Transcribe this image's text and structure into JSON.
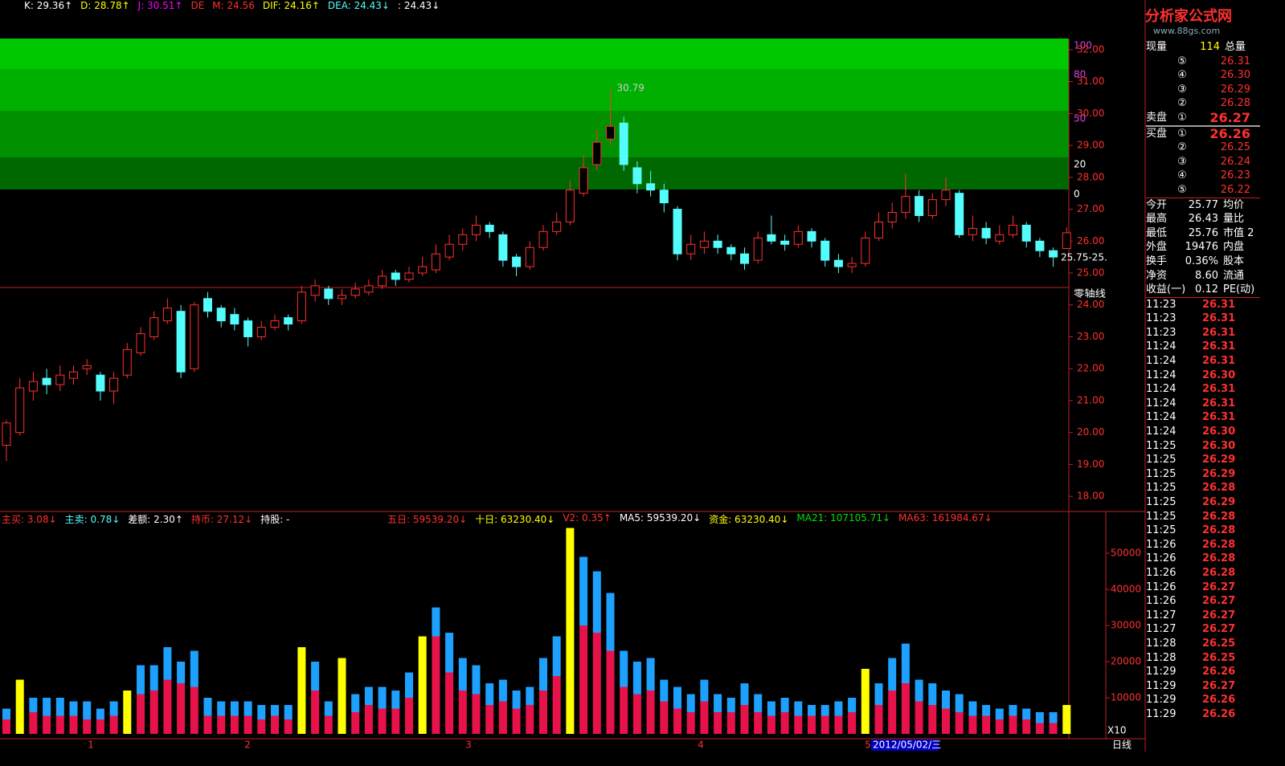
{
  "header": {
    "indicators": [
      {
        "text": "K: 29.36↑",
        "color": "#ffffff"
      },
      {
        "text": "D: 28.78↑",
        "color": "#ffff00"
      },
      {
        "text": "J: 30.51↑",
        "color": "#ff00ff"
      },
      {
        "text": "DE",
        "color": "#ff3030"
      },
      {
        "text": "M: 24.56",
        "color": "#ff3030"
      },
      {
        "text": "DIF: 24.16↑",
        "color": "#ffff00"
      },
      {
        "text": "DEA: 24.43↓",
        "color": "#54fcfc"
      },
      {
        "text": ": 24.43↓",
        "color": "#ffffff"
      }
    ]
  },
  "logo": {
    "title": "分析家公式网",
    "url": "www.88gs.com"
  },
  "kdj_panel": {
    "levels": [
      100,
      80,
      50,
      20,
      0
    ]
  },
  "price_chart": {
    "ylim": [
      17.55,
      32.35
    ],
    "yticks": [
      {
        "value": 32,
        "label": "32.00"
      },
      {
        "value": 31,
        "label": "31.00"
      },
      {
        "value": 30,
        "label": "30.00"
      },
      {
        "value": 29,
        "label": "29.00"
      },
      {
        "value": 28,
        "label": "28.00"
      },
      {
        "value": 27,
        "label": "27.00"
      },
      {
        "value": 26,
        "label": "26.00"
      },
      {
        "value": 25,
        "label": "25.00"
      },
      {
        "value": 24,
        "label": "24.00"
      },
      {
        "value": 23,
        "label": "23.00"
      },
      {
        "value": 22,
        "label": "22.00"
      },
      {
        "value": 21,
        "label": "21.00"
      },
      {
        "value": 20,
        "label": "20.00"
      },
      {
        "value": 19,
        "label": "19.00"
      },
      {
        "value": 18,
        "label": "18.00"
      }
    ],
    "high_label": "30.79",
    "range_label": "25.75-25.",
    "zero_label": "零轴线",
    "candles": [
      [
        19.6,
        20.4,
        19.1,
        20.3
      ],
      [
        20.0,
        21.7,
        19.9,
        21.4
      ],
      [
        21.3,
        21.9,
        21.0,
        21.6
      ],
      [
        21.7,
        22.0,
        21.2,
        21.5
      ],
      [
        21.5,
        22.1,
        21.3,
        21.8
      ],
      [
        21.7,
        22.1,
        21.5,
        21.9
      ],
      [
        22.0,
        22.3,
        21.8,
        22.1
      ],
      [
        21.8,
        21.9,
        21.0,
        21.3
      ],
      [
        21.3,
        21.9,
        20.9,
        21.7
      ],
      [
        21.8,
        22.8,
        21.7,
        22.6
      ],
      [
        22.5,
        23.3,
        22.4,
        23.1
      ],
      [
        23.0,
        23.8,
        22.9,
        23.6
      ],
      [
        23.5,
        24.2,
        23.4,
        23.9
      ],
      [
        23.8,
        24.0,
        21.7,
        21.9
      ],
      [
        22.0,
        24.1,
        21.9,
        24.0
      ],
      [
        24.2,
        24.4,
        23.6,
        23.8
      ],
      [
        23.9,
        24.0,
        23.3,
        23.5
      ],
      [
        23.7,
        23.9,
        23.2,
        23.4
      ],
      [
        23.5,
        23.6,
        22.7,
        23.0
      ],
      [
        23.0,
        23.5,
        22.9,
        23.3
      ],
      [
        23.3,
        23.7,
        23.2,
        23.5
      ],
      [
        23.6,
        23.7,
        23.2,
        23.4
      ],
      [
        23.5,
        24.6,
        23.4,
        24.4
      ],
      [
        24.3,
        24.8,
        24.1,
        24.6
      ],
      [
        24.5,
        24.6,
        24.0,
        24.2
      ],
      [
        24.2,
        24.5,
        24.0,
        24.3
      ],
      [
        24.3,
        24.7,
        24.2,
        24.5
      ],
      [
        24.4,
        24.8,
        24.3,
        24.6
      ],
      [
        24.6,
        25.1,
        24.5,
        24.9
      ],
      [
        25.0,
        25.1,
        24.6,
        24.8
      ],
      [
        24.8,
        25.2,
        24.7,
        25.0
      ],
      [
        25.0,
        25.5,
        24.9,
        25.2
      ],
      [
        25.1,
        25.9,
        25.0,
        25.6
      ],
      [
        25.5,
        26.2,
        25.4,
        25.9
      ],
      [
        25.9,
        26.4,
        25.7,
        26.2
      ],
      [
        26.2,
        26.8,
        26.0,
        26.5
      ],
      [
        26.5,
        26.6,
        26.1,
        26.3
      ],
      [
        26.2,
        26.3,
        25.2,
        25.4
      ],
      [
        25.5,
        25.6,
        24.9,
        25.2
      ],
      [
        25.2,
        26.0,
        25.1,
        25.8
      ],
      [
        25.8,
        26.5,
        25.7,
        26.3
      ],
      [
        26.3,
        26.9,
        26.2,
        26.6
      ],
      [
        26.6,
        27.9,
        26.5,
        27.6
      ],
      [
        27.5,
        28.7,
        27.4,
        28.3
      ],
      [
        28.4,
        29.5,
        28.2,
        29.1
      ],
      [
        29.2,
        30.79,
        29.0,
        29.6
      ],
      [
        29.7,
        29.9,
        28.2,
        28.4
      ],
      [
        28.3,
        28.5,
        27.5,
        27.8
      ],
      [
        27.8,
        28.2,
        27.4,
        27.6
      ],
      [
        27.6,
        27.8,
        26.9,
        27.2
      ],
      [
        27.0,
        27.1,
        25.4,
        25.6
      ],
      [
        25.6,
        26.2,
        25.4,
        25.9
      ],
      [
        25.8,
        26.3,
        25.6,
        26.0
      ],
      [
        26.0,
        26.2,
        25.6,
        25.8
      ],
      [
        25.8,
        25.9,
        25.4,
        25.6
      ],
      [
        25.6,
        25.8,
        25.1,
        25.3
      ],
      [
        25.4,
        26.3,
        25.3,
        26.1
      ],
      [
        26.2,
        26.8,
        25.9,
        26.0
      ],
      [
        26.0,
        26.2,
        25.7,
        25.9
      ],
      [
        25.9,
        26.5,
        25.8,
        26.3
      ],
      [
        26.3,
        26.4,
        25.8,
        26.0
      ],
      [
        26.0,
        26.1,
        25.2,
        25.4
      ],
      [
        25.4,
        25.6,
        25.0,
        25.2
      ],
      [
        25.2,
        25.5,
        25.0,
        25.3
      ],
      [
        25.3,
        26.3,
        25.2,
        26.1
      ],
      [
        26.1,
        26.9,
        26.0,
        26.6
      ],
      [
        26.6,
        27.2,
        26.4,
        26.9
      ],
      [
        26.9,
        28.1,
        26.7,
        27.4
      ],
      [
        27.4,
        27.6,
        26.6,
        26.8
      ],
      [
        26.8,
        27.5,
        26.7,
        27.3
      ],
      [
        27.3,
        28.0,
        27.1,
        27.6
      ],
      [
        27.5,
        27.6,
        26.1,
        26.2
      ],
      [
        26.2,
        26.8,
        26.0,
        26.4
      ],
      [
        26.4,
        26.6,
        25.9,
        26.1
      ],
      [
        26.0,
        26.5,
        25.9,
        26.2
      ],
      [
        26.2,
        26.8,
        26.1,
        26.5
      ],
      [
        26.5,
        26.6,
        25.8,
        26.0
      ],
      [
        26.0,
        26.1,
        25.5,
        25.7
      ],
      [
        25.7,
        25.8,
        25.2,
        25.5
      ],
      [
        25.77,
        26.43,
        25.76,
        26.26
      ]
    ]
  },
  "volume_chart": {
    "ylim": [
      0,
      60900
    ],
    "yticks": [
      10000,
      20000,
      30000,
      40000,
      50000
    ],
    "header": [
      {
        "text": "主买: 3.08↓",
        "color": "#ff3030"
      },
      {
        "text": "主卖: 0.78↓",
        "color": "#54fcfc"
      },
      {
        "text": "差额: 2.30↑",
        "color": "#ffffff"
      },
      {
        "text": "持币: 27.12↓",
        "color": "#ff3030"
      },
      {
        "text": "持股: -",
        "color": "#ffffff"
      }
    ],
    "header2": [
      {
        "text": "五日: 59539.20↓",
        "color": "#ff3030"
      },
      {
        "text": "十日: 63230.40↓",
        "color": "#ffff00"
      },
      {
        "text": "V2: 0.35↑",
        "color": "#ff3030"
      },
      {
        "text": "MA5: 59539.20↓",
        "color": "#ffffff"
      },
      {
        "text": "资金: 63230.40↓",
        "color": "#ffff00"
      },
      {
        "text": "MA21: 107105.71↓",
        "color": "#00e000"
      },
      {
        "text": "MA63: 161984.67↓",
        "color": "#ff3030"
      }
    ],
    "series": [
      {
        "color": "#e8124a",
        "values": [
          4000,
          9000,
          6000,
          5000,
          5000,
          5000,
          4000,
          4000,
          5000,
          7000,
          11000,
          12000,
          15000,
          14000,
          13000,
          5000,
          5000,
          5000,
          5000,
          4000,
          5000,
          4000,
          14000,
          12000,
          5000,
          12000,
          6000,
          8000,
          7000,
          7000,
          10000,
          16000,
          27000,
          17000,
          12000,
          11000,
          8000,
          9000,
          7000,
          8000,
          12000,
          16000,
          33000,
          30000,
          28000,
          23000,
          13000,
          11000,
          12000,
          9000,
          7000,
          6000,
          9000,
          6000,
          6000,
          8000,
          6000,
          5000,
          6000,
          5000,
          5000,
          5000,
          5000,
          6000,
          10000,
          8000,
          12000,
          14000,
          9000,
          8000,
          7000,
          6000,
          5000,
          5000,
          4000,
          5000,
          4000,
          3000,
          3000,
          5000
        ]
      },
      {
        "color": "#1ea0ff",
        "values": [
          3000,
          6000,
          4000,
          5000,
          5000,
          4000,
          5000,
          3000,
          4000,
          5000,
          8000,
          7000,
          9000,
          6000,
          10000,
          5000,
          4000,
          4000,
          4000,
          4000,
          3000,
          4000,
          10000,
          8000,
          4000,
          9000,
          5000,
          5000,
          6000,
          5000,
          7000,
          11000,
          8000,
          11000,
          9000,
          8000,
          6000,
          6000,
          5000,
          5000,
          9000,
          11000,
          24000,
          19000,
          17000,
          16000,
          10000,
          9000,
          9000,
          6000,
          6000,
          5000,
          6000,
          5000,
          4000,
          6000,
          5000,
          4000,
          4000,
          4000,
          3000,
          3000,
          4000,
          4000,
          8000,
          6000,
          9000,
          11000,
          6000,
          6000,
          5000,
          5000,
          4000,
          3000,
          3000,
          3000,
          3000,
          3000,
          3000,
          3000
        ]
      }
    ],
    "highlight_color": "#ffff00",
    "highlight": [
      1,
      9,
      22,
      25,
      31,
      42,
      64,
      79
    ],
    "x_labels": [
      "1",
      "2",
      "3",
      "4",
      "5"
    ],
    "date_label": "2012/05/02/三",
    "scale_label": "X10",
    "period": "日线"
  },
  "quote": {
    "volume_row": [
      "现量",
      "114",
      "总量"
    ],
    "sell_label": "卖盘",
    "buy_label": "买盘",
    "sells": [
      {
        "label": "⑤",
        "price": "26.31"
      },
      {
        "label": "④",
        "price": "26.30"
      },
      {
        "label": "③",
        "price": "26.29"
      },
      {
        "label": "②",
        "price": "26.28"
      },
      {
        "label": "①",
        "price": "26.27"
      }
    ],
    "buys": [
      {
        "label": "①",
        "price": "26.26"
      },
      {
        "label": "②",
        "price": "26.25"
      },
      {
        "label": "③",
        "price": "26.24"
      },
      {
        "label": "④",
        "price": "26.23"
      },
      {
        "label": "⑤",
        "price": "26.22"
      }
    ],
    "stats": [
      [
        "今开",
        "25.77",
        "均价"
      ],
      [
        "最高",
        "26.43",
        "量比"
      ],
      [
        "最低",
        "25.76",
        "市值 2"
      ],
      [
        "外盘",
        "19476",
        "内盘"
      ],
      [
        "换手",
        "0.36%",
        "股本"
      ],
      [
        "净资",
        "8.60",
        "流通"
      ],
      [
        "收益(一)",
        "0.12",
        "PE(动)"
      ]
    ],
    "ticks": [
      [
        "11:23",
        "26.31"
      ],
      [
        "11:23",
        "26.31"
      ],
      [
        "11:23",
        "26.31"
      ],
      [
        "11:24",
        "26.31"
      ],
      [
        "11:24",
        "26.31"
      ],
      [
        "11:24",
        "26.30"
      ],
      [
        "11:24",
        "26.31"
      ],
      [
        "11:24",
        "26.31"
      ],
      [
        "11:24",
        "26.31"
      ],
      [
        "11:24",
        "26.30"
      ],
      [
        "11:25",
        "26.30"
      ],
      [
        "11:25",
        "26.29"
      ],
      [
        "11:25",
        "26.29"
      ],
      [
        "11:25",
        "26.28"
      ],
      [
        "11:25",
        "26.29"
      ],
      [
        "11:25",
        "26.28"
      ],
      [
        "11:25",
        "26.28"
      ],
      [
        "11:26",
        "26.28"
      ],
      [
        "11:26",
        "26.28"
      ],
      [
        "11:26",
        "26.28"
      ],
      [
        "11:26",
        "26.27"
      ],
      [
        "11:26",
        "26.27"
      ],
      [
        "11:27",
        "26.27"
      ],
      [
        "11:27",
        "26.27"
      ],
      [
        "11:28",
        "26.25"
      ],
      [
        "11:28",
        "26.25"
      ],
      [
        "11:29",
        "26.26"
      ],
      [
        "11:29",
        "26.27"
      ],
      [
        "11:29",
        "26.26"
      ],
      [
        "11:29",
        "26.26"
      ]
    ]
  }
}
